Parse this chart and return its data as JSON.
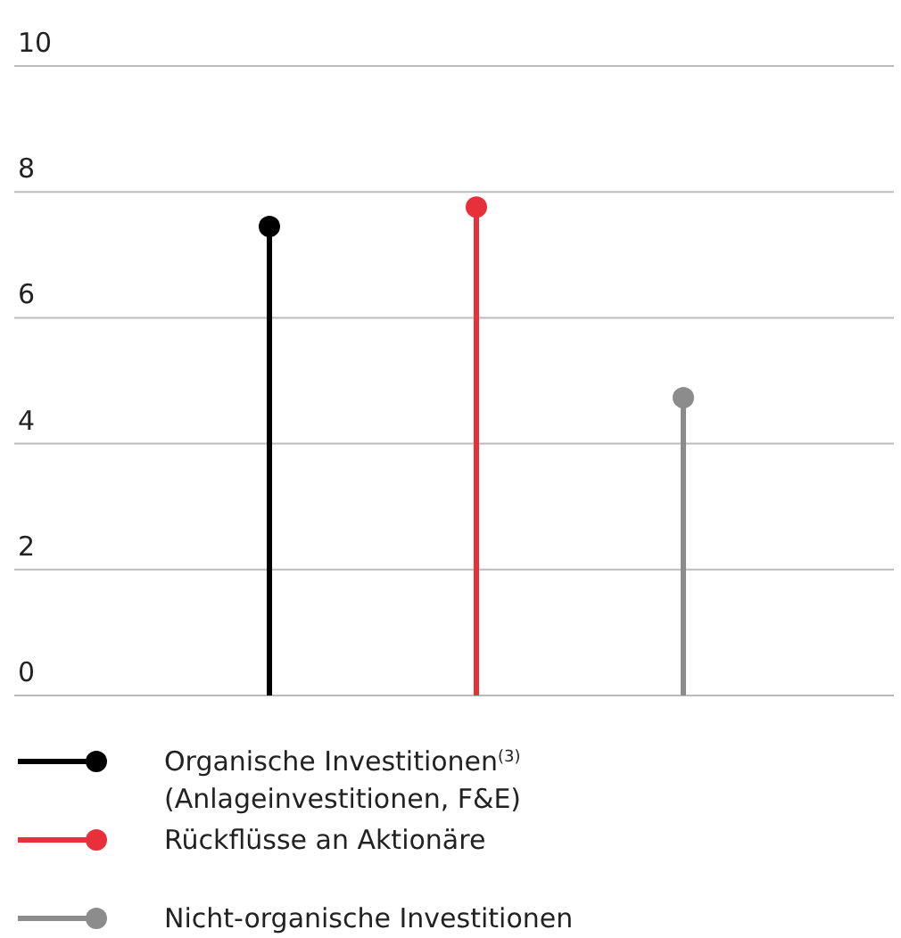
{
  "chart_data": {
    "type": "lollipop",
    "categories": [
      null,
      null,
      null
    ],
    "series": [
      {
        "name": "Organische Investitionen$^{(3)}$ (Anlageinvestitionen, F&E)",
        "color": "#000000",
        "values": [
          7.45,
          null,
          null
        ]
      },
      {
        "name": "Rückflüsse an Aktionäre",
        "color": "#e8303a",
        "values": [
          null,
          7.76,
          null
        ]
      },
      {
        "name": "Nicht-organische Investitionen",
        "color": "#8c8c8c",
        "values": [
          null,
          null,
          4.73
        ]
      }
    ],
    "ylim": [
      0,
      10
    ],
    "yticks": [
      0,
      2,
      4,
      6,
      8,
      10
    ],
    "grid": "y",
    "legend": "bottom",
    "marker": "circle"
  }
}
